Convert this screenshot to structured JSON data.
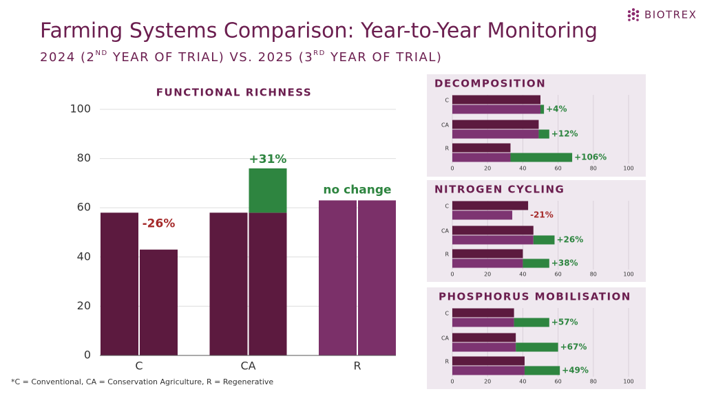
{
  "header": {
    "title": "Farming Systems Comparison: Year-to-Year Monitoring",
    "subtitle": [
      "2024 (2",
      "ND",
      " YEAR OF TRIAL) VS. 2025 (3",
      "RD",
      " YEAR OF TRIAL)"
    ],
    "logo": "BIOTREX"
  },
  "footnote": "*C = Conventional, CA = Conservation Agriculture, R = Regenerative",
  "chart_data": [
    {
      "type": "bar",
      "title": "FUNCTIONAL RICHNESS",
      "categories": [
        "C",
        "CA",
        "R"
      ],
      "series": [
        {
          "colors": [
            "#5c1a3f",
            "#5c1a3f",
            "#7b3069"
          ],
          "values": [
            58,
            58,
            63
          ]
        },
        {
          "colors": [
            "#5c1a3f",
            "#5c1a3f",
            "#7b3069"
          ],
          "values": [
            43,
            76,
            63
          ]
        }
      ],
      "increase_color": "#2e8540",
      "decrease_color": "#a52a2a",
      "change_labels": [
        "-26%",
        "+31%",
        "no change"
      ],
      "ylim": [
        0,
        100
      ],
      "yticks": [
        0,
        20,
        40,
        60,
        80,
        100
      ],
      "grid": true
    },
    {
      "type": "barh",
      "title": "DECOMPOSITION",
      "categories": [
        "C",
        "CA",
        "R"
      ],
      "series": [
        {
          "color": "#5c1a3f",
          "values": [
            50,
            49,
            33
          ]
        },
        {
          "color": "#7d3472",
          "values": [
            52,
            55,
            68
          ]
        }
      ],
      "increase_color": "#2e8540",
      "decrease_color": "#a52a2a",
      "change_labels": [
        "+4%",
        "+12%",
        "+106%"
      ],
      "xlim": [
        0,
        100
      ],
      "xticks": [
        0,
        20,
        40,
        60,
        80,
        100
      ],
      "grid": true
    },
    {
      "type": "barh",
      "title": "NITROGEN CYCLING",
      "categories": [
        "C",
        "CA",
        "R"
      ],
      "series": [
        {
          "color": "#5c1a3f",
          "values": [
            43,
            46,
            40
          ]
        },
        {
          "color": "#7d3472",
          "values": [
            34,
            58,
            55
          ]
        }
      ],
      "increase_color": "#2e8540",
      "decrease_color": "#a52a2a",
      "change_labels": [
        "-21%",
        "+26%",
        "+38%"
      ],
      "xlim": [
        0,
        100
      ],
      "xticks": [
        0,
        20,
        40,
        60,
        80,
        100
      ],
      "grid": true
    },
    {
      "type": "barh",
      "title": "PHOSPHORUS MOBILISATION",
      "categories": [
        "C",
        "CA",
        "R"
      ],
      "series": [
        {
          "color": "#5c1a3f",
          "values": [
            35,
            36,
            41
          ]
        },
        {
          "color": "#7d3472",
          "values": [
            55,
            60,
            61
          ]
        }
      ],
      "increase_color": "#2e8540",
      "decrease_color": "#a52a2a",
      "change_labels": [
        "+57%",
        "+67%",
        "+49%"
      ],
      "xlim": [
        0,
        100
      ],
      "xticks": [
        0,
        20,
        40,
        60,
        80,
        100
      ],
      "grid": true
    }
  ]
}
